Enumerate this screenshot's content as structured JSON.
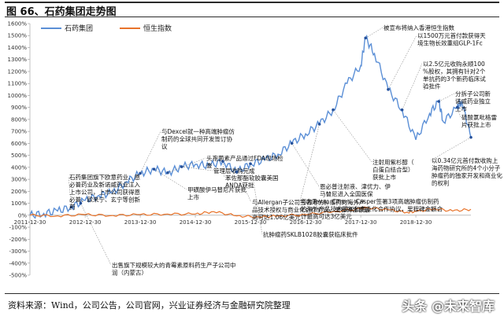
{
  "figure_title": "图 66、石药集团走势图",
  "source": "资料来源：Wind，公司公告，公司官网，兴业证券经济与金融研究院整理",
  "watermark": "头条 @未来智库",
  "colors": {
    "series1": "#5b8fd6",
    "series2": "#e8732a",
    "annotation": "#1f4e9e"
  },
  "chart_data": {
    "type": "line",
    "legend_position": "top-left",
    "series": [
      {
        "name": "石药集团",
        "color": "#5b8fd6",
        "points": [
          [
            "2011-12-30",
            0
          ],
          [
            "2012-03-31",
            15
          ],
          [
            "2012-06-30",
            35
          ],
          [
            "2012-09-30",
            70
          ],
          [
            "2012-12-30",
            125
          ],
          [
            "2013-03-31",
            165
          ],
          [
            "2013-06-30",
            190
          ],
          [
            "2013-09-30",
            280
          ],
          [
            "2013-12-30",
            350
          ],
          [
            "2014-03-31",
            385
          ],
          [
            "2014-06-30",
            355
          ],
          [
            "2014-09-30",
            405
          ],
          [
            "2014-12-30",
            425
          ],
          [
            "2015-03-31",
            415
          ],
          [
            "2015-06-30",
            450
          ],
          [
            "2015-09-30",
            360
          ],
          [
            "2015-12-30",
            430
          ],
          [
            "2016-03-31",
            460
          ],
          [
            "2016-06-30",
            510
          ],
          [
            "2016-09-30",
            600
          ],
          [
            "2016-12-30",
            680
          ],
          [
            "2017-03-31",
            760
          ],
          [
            "2017-06-30",
            880
          ],
          [
            "2017-09-30",
            1100
          ],
          [
            "2017-12-30",
            1250
          ],
          [
            "2018-01-31",
            1480
          ],
          [
            "2018-03-31",
            1350
          ],
          [
            "2018-06-30",
            1050
          ],
          [
            "2018-09-30",
            880
          ],
          [
            "2018-12-30",
            630
          ],
          [
            "2019-03-31",
            850
          ],
          [
            "2019-05-31",
            950
          ],
          [
            "2019-06-30",
            780
          ],
          [
            "2019-09-30",
            900
          ],
          [
            "2019-10-31",
            950
          ],
          [
            "2019-12-30",
            650
          ]
        ]
      },
      {
        "name": "恒生指数",
        "color": "#e8732a",
        "points": [
          [
            "2011-12-30",
            0
          ],
          [
            "2012-06-30",
            -5
          ],
          [
            "2012-12-30",
            5
          ],
          [
            "2013-06-30",
            -2
          ],
          [
            "2013-12-30",
            5
          ],
          [
            "2014-06-30",
            10
          ],
          [
            "2014-12-30",
            10
          ],
          [
            "2015-04-30",
            30
          ],
          [
            "2015-09-30",
            -5
          ],
          [
            "2016-02-28",
            -15
          ],
          [
            "2016-06-30",
            -5
          ],
          [
            "2016-12-30",
            5
          ],
          [
            "2017-06-30",
            30
          ],
          [
            "2017-12-30",
            55
          ],
          [
            "2018-01-31",
            65
          ],
          [
            "2018-06-30",
            45
          ],
          [
            "2018-10-31",
            25
          ],
          [
            "2018-12-30",
            30
          ],
          [
            "2019-04-30",
            55
          ],
          [
            "2019-08-31",
            35
          ],
          [
            "2019-12-30",
            50
          ]
        ]
      }
    ],
    "y_ticks": [
      "1600%",
      "1500%",
      "1400%",
      "1300%",
      "1200%",
      "1100%",
      "1000%",
      "900%",
      "800%",
      "700%",
      "600%",
      "500%",
      "400%",
      "300%",
      "200%",
      "100%",
      "0%",
      "-100%",
      "-200%",
      "-300%",
      "-400%",
      "-500%"
    ],
    "x_ticks": [
      "2011-12-30",
      "2012-12-30",
      "2013-12-30",
      "2014-12-30",
      "2015-12-30",
      "2016-12-30",
      "2017-12-30",
      "2018-12-30"
    ],
    "ylim": [
      -500,
      1600
    ],
    "annotations": [
      {
        "date": "2012-09-30",
        "value": 70,
        "text": "石药集团旗下欧意药业、恩必普药业及新诺威药业注入上市公司，上市公司获得恩必普、欧来宁、玄宁等创新药"
      },
      {
        "date": "2012-11-30",
        "value": 100,
        "text": "出售旗下规模较大的青霉素原料药生产子公司中润（内蒙古）"
      },
      {
        "date": "2013-12-30",
        "value": 350,
        "text": "与Dexcel就一种高端肿瘤仿制药的全球共同开发签订协议"
      },
      {
        "date": "2014-03-31",
        "value": 385,
        "text": "甲磺酸伊马替尼片获批上市"
      },
      {
        "date": "2014-06-30",
        "value": 355,
        "text": "头孢菌素产品通过FDA现场检查"
      },
      {
        "date": "2014-09-30",
        "value": 405,
        "text": "管理层收购完成"
      },
      {
        "date": "2015-06-30",
        "value": 450,
        "text": "苯佐那酯软胶囊美国ANDA获批"
      },
      {
        "date": "2015-09-30",
        "value": 360,
        "text": "与Allergan子公司签署难仿肿瘤药的海外产品技术授权与商业化合作协议，里程碑金额最高可达1.06亿美元"
      },
      {
        "date": "2015-12-30",
        "value": 430,
        "text": "抗肿瘤药SKLB1028胶囊获临床批件"
      },
      {
        "date": "2016-09-30",
        "value": 600,
        "text": "恩必普注射液、津优力、伊马替尼进入全国医保"
      },
      {
        "date": "2017-03-31",
        "value": 760,
        "text": "与为Teva、Citron、Casper签署3项高端肿瘤仿制药的海外产品技术授权和商业化合作协议，里程碑金额合计最高可达3亿美元"
      },
      {
        "date": "2017-06-30",
        "value": 880,
        "text": "注射用紫杉醇（白蛋白结合型）获批上市"
      },
      {
        "date": "2018-01-31",
        "value": 1480,
        "text": "被宣布将纳入香港恒生指数"
      },
      {
        "date": "2018-06-30",
        "value": 1050,
        "text": "以1500万元首付款获得天境生物长效重组GLP-1Fc"
      },
      {
        "date": "2018-09-30",
        "value": 880,
        "text": "以2.5亿元收购永顺100%股权，其拥有针对2个单抗药的3个新药临床试验批件"
      },
      {
        "date": "2019-05-31",
        "value": 950,
        "text": "分拆子公司新诺威药业独立上市"
      },
      {
        "date": "2019-09-30",
        "value": 900,
        "text": "硫酸氯吡格雷片获批上市"
      },
      {
        "date": "2019-12-30",
        "value": 650,
        "text": "以0.34亿元首付款收购上海药物研究所的4个小分子肿瘤药的独家开发和商业化的权利"
      }
    ]
  }
}
